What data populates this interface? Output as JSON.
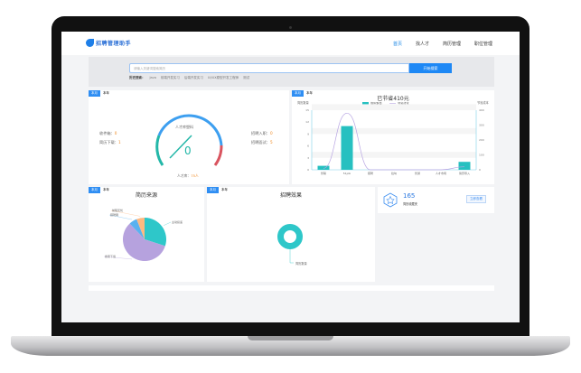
{
  "nav": {
    "logo_text": "招聘管理助手",
    "items": [
      {
        "label": "首页",
        "active": true
      },
      {
        "label": "找人才"
      },
      {
        "label": "简历管理"
      },
      {
        "label": "职位管理"
      }
    ]
  },
  "search": {
    "placeholder": "请输入关键词搜索简历",
    "button": "开始搜索",
    "history_label": "历史搜索：",
    "history": [
      "Java",
      "前端开发实习",
      "后端开发实习",
      "UI/UX原型开发工程师",
      "测试"
    ]
  },
  "tabs": {
    "month": "本月",
    "year": "本年"
  },
  "gauge_card": {
    "inbox_label": "收件箱：",
    "inbox": "0",
    "download_label": "简历下载：",
    "download": "1",
    "hired_label": "招聘入职：",
    "hired": "0",
    "interview_label": "招聘面试：",
    "interview": "5",
    "gauge_title": "人才库塑料",
    "gauge_value": "0",
    "talent_label": "人才库：",
    "talent": "75人",
    "accent": "#2f9af0"
  },
  "bar_card": {
    "title": "已节省410元"
  },
  "chart_data": [
    {
      "type": "bar",
      "title": "已节省410元",
      "ylabel": "简历数量",
      "y2label": "节省成本",
      "categories": [
        "智联",
        "51job",
        "猎聘",
        "拉勾",
        "智通",
        "人才市场",
        "简历导入"
      ],
      "series": [
        {
          "name": "简历数量",
          "type": "bar",
          "values": [
            1,
            11,
            0,
            0,
            0,
            0,
            2
          ],
          "color": "#26c0c0"
        },
        {
          "name": "节省成本",
          "type": "line",
          "axis": "right",
          "values": [
            10,
            380,
            0,
            0,
            0,
            0,
            20
          ],
          "color": "#b8a5e3"
        }
      ],
      "ylim": [
        0,
        15
      ],
      "yticks": [
        0,
        3,
        6,
        9,
        12,
        15
      ],
      "y2lim": [
        0,
        400
      ],
      "y2ticks": [
        0,
        100,
        200,
        300,
        400
      ],
      "legend": "top"
    },
    {
      "type": "pie",
      "title": "简历来源",
      "labels": [
        "主动投递",
        "搜索下载",
        "猎聘网",
        "前程无忧"
      ],
      "values": [
        30,
        58,
        6,
        6
      ],
      "colors": [
        "#2ec7c9",
        "#b6a2de",
        "#5ab1ef",
        "#ffb980"
      ]
    },
    {
      "type": "pie",
      "title": "招聘效果",
      "labels": [
        "简历数量"
      ],
      "values": [
        100
      ],
      "colors": [
        "#2ec7c9"
      ],
      "donut": true
    }
  ],
  "stat_card": {
    "value": "165",
    "label": "简历收藏夹",
    "button": "立即查看"
  }
}
